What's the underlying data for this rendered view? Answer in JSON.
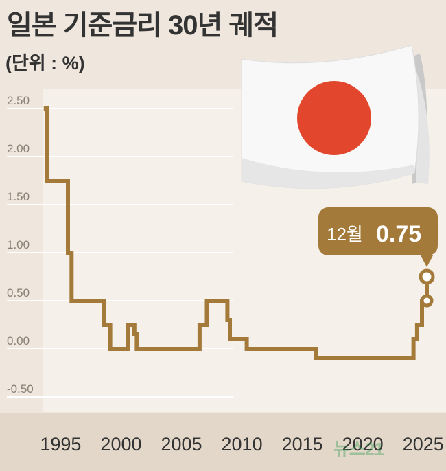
{
  "header": {
    "title": "일본 기준금리 30년 궤적",
    "unit": "(단위 : %)"
  },
  "callout": {
    "month": "12월",
    "value": "0.75"
  },
  "watermark": "뉴스21",
  "colors": {
    "background": "#efe7dd",
    "plot_background": "#f5f0e9",
    "line": "#a47a3a",
    "axis_band": "#e2d7c8",
    "callout": "#a47a3a",
    "flag_circle": "#e2472d"
  },
  "chart_data": {
    "type": "line",
    "title": "일본 기준금리 30년 궤적",
    "ylabel": "(단위 : %)",
    "xlabel": "",
    "ylim": [
      -0.5,
      2.5
    ],
    "xlim": [
      1993.5,
      2025.3
    ],
    "yticks": [
      "2.50",
      "2.00",
      "1.50",
      "1.00",
      "0.50",
      "0.00",
      "-0.50"
    ],
    "yticks_values": [
      2.5,
      2.0,
      1.5,
      1.0,
      0.5,
      0.0,
      -0.5
    ],
    "xticks": [
      "1995",
      "2000",
      "2005",
      "2010",
      "2015",
      "2020",
      "2025"
    ],
    "xticks_values": [
      1995,
      2000,
      2005,
      2010,
      2015,
      2020,
      2025
    ],
    "grid": "horizontal",
    "step": true,
    "series": [
      {
        "points": [
          [
            1993.6,
            2.5
          ],
          [
            1993.9,
            2.5
          ],
          [
            1993.9,
            1.75
          ],
          [
            1995.6,
            1.75
          ],
          [
            1995.6,
            1.0
          ],
          [
            1995.9,
            1.0
          ],
          [
            1995.9,
            0.5
          ],
          [
            1998.6,
            0.5
          ],
          [
            1998.6,
            0.25
          ],
          [
            1999.1,
            0.25
          ],
          [
            1999.1,
            0.0
          ],
          [
            2000.6,
            0.0
          ],
          [
            2000.6,
            0.25
          ],
          [
            2001.1,
            0.25
          ],
          [
            2001.1,
            0.15
          ],
          [
            2001.3,
            0.15
          ],
          [
            2001.3,
            0.0
          ],
          [
            2006.5,
            0.0
          ],
          [
            2006.5,
            0.25
          ],
          [
            2007.1,
            0.25
          ],
          [
            2007.1,
            0.5
          ],
          [
            2008.8,
            0.5
          ],
          [
            2008.8,
            0.3
          ],
          [
            2009.0,
            0.3
          ],
          [
            2009.0,
            0.1
          ],
          [
            2010.4,
            0.1
          ],
          [
            2010.4,
            0.0
          ],
          [
            2016.1,
            0.0
          ],
          [
            2016.1,
            -0.1
          ],
          [
            2024.2,
            -0.1
          ],
          [
            2024.2,
            0.1
          ],
          [
            2024.5,
            0.1
          ],
          [
            2024.5,
            0.25
          ],
          [
            2024.9,
            0.25
          ],
          [
            2024.9,
            0.5
          ],
          [
            2025.3,
            0.5
          ]
        ],
        "markers": [
          {
            "x": 2025.3,
            "y": 0.5
          },
          {
            "x": 2025.3,
            "y": 0.75
          }
        ]
      }
    ],
    "annotation": {
      "label": "12월 0.75",
      "x": 2025.3,
      "y": 0.75
    }
  }
}
